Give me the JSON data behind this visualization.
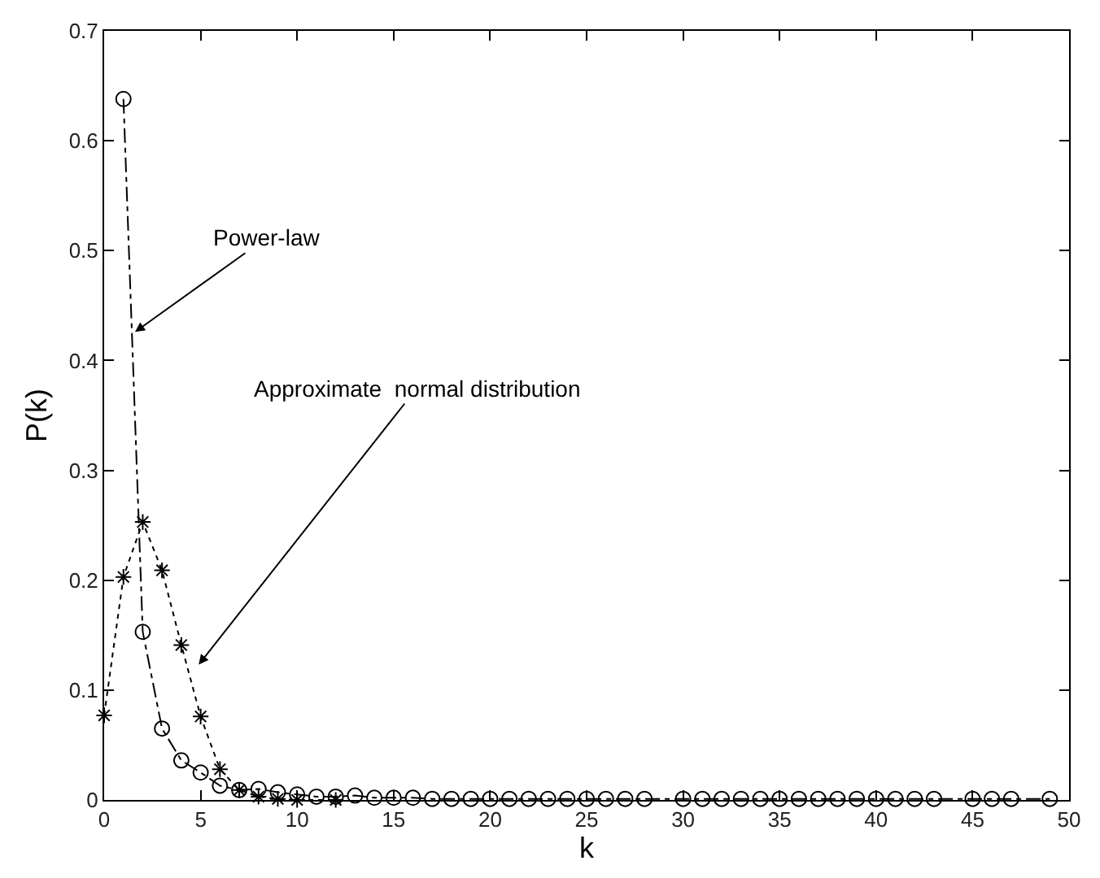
{
  "chart_data": {
    "type": "line",
    "xlabel": "k",
    "ylabel": "P(k)",
    "xlim": [
      0,
      50
    ],
    "xticks": [
      0,
      5,
      10,
      15,
      20,
      25,
      30,
      35,
      40,
      45,
      50
    ],
    "ylim": [
      0,
      0.7
    ],
    "yticks": [
      0,
      0.1,
      0.2,
      0.3,
      0.4,
      0.5,
      0.6,
      0.7
    ],
    "series": [
      {
        "color": "#000000",
        "marker": "circle",
        "line_style": "dashed",
        "x": [
          1,
          2,
          3,
          4,
          5,
          6,
          7,
          8,
          9,
          10,
          11,
          12,
          13,
          14,
          15,
          16,
          17,
          18,
          19,
          20,
          21,
          22,
          23,
          24,
          25,
          26,
          27,
          28,
          30,
          31,
          32,
          33,
          34,
          35,
          36,
          37,
          38,
          39,
          40,
          41,
          42,
          43,
          45,
          46,
          47,
          49
        ],
        "values": [
          0.638,
          0.153,
          0.065,
          0.036,
          0.025,
          0.013,
          0.009,
          0.01,
          0.007,
          0.005,
          0.003,
          0.003,
          0.004,
          0.002,
          0.002,
          0.002,
          0.001,
          0.001,
          0.001,
          0.001,
          0.001,
          0.001,
          0.001,
          0.001,
          0.001,
          0.001,
          0.001,
          0.001,
          0.001,
          0.001,
          0.001,
          0.001,
          0.001,
          0.001,
          0.001,
          0.001,
          0.001,
          0.001,
          0.001,
          0.001,
          0.001,
          0.001,
          0.001,
          0.001,
          0.001,
          0.001
        ]
      },
      {
        "color": "#000000",
        "marker": "cross",
        "line_style": "dotted",
        "x": [
          0,
          1,
          2,
          3,
          4,
          5,
          6,
          7,
          8,
          9,
          10,
          12
        ],
        "values": [
          0.077,
          0.203,
          0.253,
          0.209,
          0.141,
          0.076,
          0.028,
          0.009,
          0.003,
          0.001,
          0,
          0
        ]
      }
    ],
    "annotations": [
      {
        "text": "Power-law",
        "x": 1.6,
        "y": 0.426
      },
      "Approximate  normal distribution"
    ]
  }
}
